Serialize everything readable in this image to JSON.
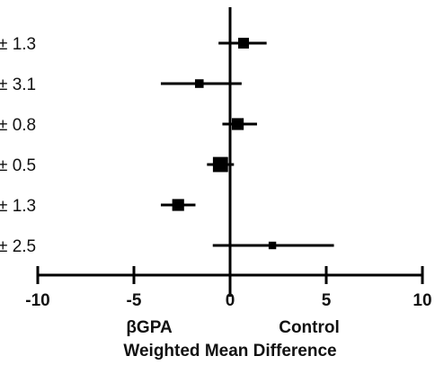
{
  "chart_data": {
    "type": "forest",
    "rows": [
      {
        "label": "± 1.3",
        "estimate": 0.7,
        "ci_low": -0.6,
        "ci_high": 1.9,
        "marker_weight": 1.0
      },
      {
        "label": "± 3.1",
        "estimate": -1.6,
        "ci_low": -3.6,
        "ci_high": 0.6,
        "marker_weight": 0.8
      },
      {
        "label": "± 0.8",
        "estimate": 0.4,
        "ci_low": -0.4,
        "ci_high": 1.4,
        "marker_weight": 1.1
      },
      {
        "label": "± 0.5",
        "estimate": -0.5,
        "ci_low": -1.2,
        "ci_high": 0.2,
        "marker_weight": 1.4
      },
      {
        "label": "± 1.3",
        "estimate": -2.7,
        "ci_low": -3.6,
        "ci_high": -1.8,
        "marker_weight": 1.1
      },
      {
        "label": "± 2.5",
        "estimate": 2.2,
        "ci_low": -0.9,
        "ci_high": 5.4,
        "marker_weight": 0.7
      }
    ],
    "x_ticks": [
      -10,
      -5,
      0,
      5,
      10
    ],
    "x_tick_labels": [
      "-10",
      "-5",
      "0",
      "5",
      "10"
    ],
    "xlim": [
      -10,
      10
    ],
    "reference_line": 0,
    "left_side_label": "βGPA",
    "right_side_label": "Control",
    "xlabel": "Weighted Mean Difference",
    "grid": false
  }
}
